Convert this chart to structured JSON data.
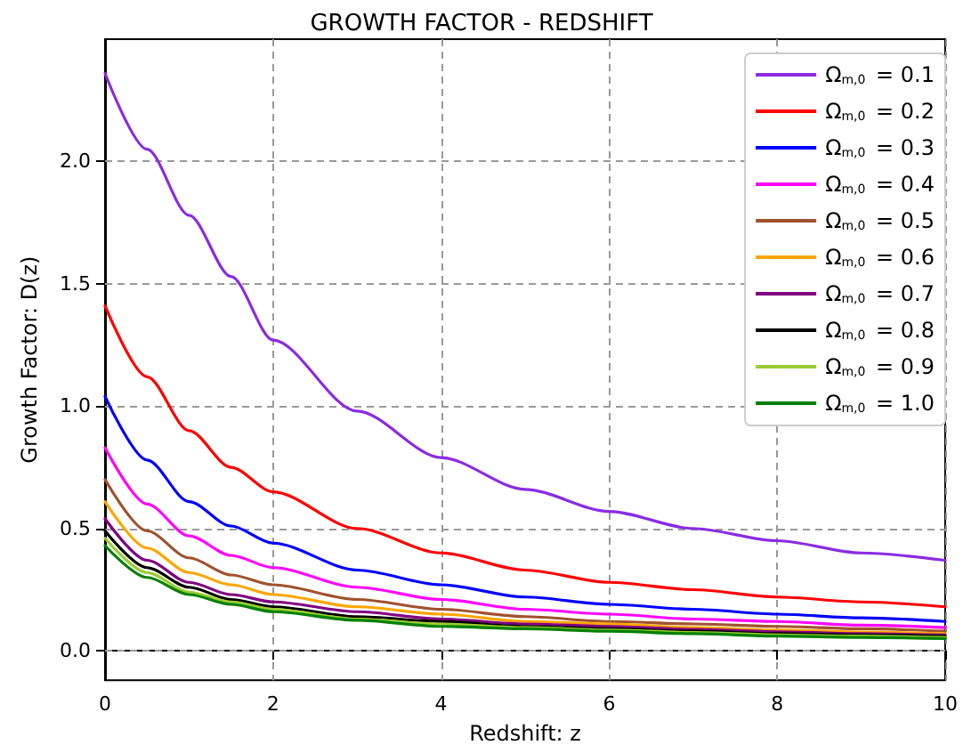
{
  "chart_data": {
    "type": "line",
    "title": "GROWTH FACTOR - REDSHIFT",
    "xlabel": "Redshift: z",
    "ylabel": "Growth Factor: D(z)",
    "x": [
      0,
      0.5,
      1,
      1.5,
      2,
      3,
      4,
      5,
      6,
      7,
      8,
      9,
      10
    ],
    "series": [
      {
        "name": "Ω$_{m,0}$ = 0.1",
        "color": "#8a2be2",
        "values": [
          2.36,
          2.05,
          1.78,
          1.53,
          1.27,
          0.98,
          0.79,
          0.66,
          0.57,
          0.5,
          0.45,
          0.4,
          0.37
        ]
      },
      {
        "name": "Ω$_{m,0}$ = 0.2",
        "color": "#ff0000",
        "values": [
          1.41,
          1.12,
          0.9,
          0.75,
          0.65,
          0.5,
          0.4,
          0.33,
          0.28,
          0.25,
          0.22,
          0.2,
          0.18
        ]
      },
      {
        "name": "Ω$_{m,0}$ = 0.3",
        "color": "#0000ff",
        "values": [
          1.04,
          0.78,
          0.61,
          0.51,
          0.44,
          0.33,
          0.27,
          0.22,
          0.19,
          0.17,
          0.15,
          0.135,
          0.12
        ]
      },
      {
        "name": "Ω$_{m,0}$ = 0.4",
        "color": "#ff00ff",
        "values": [
          0.83,
          0.6,
          0.47,
          0.39,
          0.34,
          0.26,
          0.21,
          0.17,
          0.15,
          0.13,
          0.12,
          0.105,
          0.095
        ]
      },
      {
        "name": "Ω$_{m,0}$ = 0.5",
        "color": "#a0522d",
        "values": [
          0.7,
          0.49,
          0.38,
          0.31,
          0.27,
          0.21,
          0.17,
          0.14,
          0.12,
          0.11,
          0.1,
          0.09,
          0.08
        ]
      },
      {
        "name": "Ω$_{m,0}$ = 0.6",
        "color": "#ffa500",
        "values": [
          0.61,
          0.42,
          0.32,
          0.27,
          0.23,
          0.18,
          0.15,
          0.12,
          0.11,
          0.095,
          0.085,
          0.077,
          0.07
        ]
      },
      {
        "name": "Ω$_{m,0}$ = 0.7",
        "color": "#800080",
        "values": [
          0.54,
          0.37,
          0.28,
          0.23,
          0.2,
          0.16,
          0.13,
          0.11,
          0.1,
          0.088,
          0.078,
          0.07,
          0.065
        ]
      },
      {
        "name": "Ω$_{m,0}$ = 0.8",
        "color": "#000000",
        "values": [
          0.49,
          0.34,
          0.26,
          0.21,
          0.18,
          0.14,
          0.12,
          0.1,
          0.09,
          0.08,
          0.07,
          0.065,
          0.06
        ]
      },
      {
        "name": "Ω$_{m,0}$ = 0.9",
        "color": "#9acd32",
        "values": [
          0.46,
          0.32,
          0.24,
          0.2,
          0.17,
          0.13,
          0.11,
          0.095,
          0.085,
          0.075,
          0.065,
          0.06,
          0.055
        ]
      },
      {
        "name": "Ω$_{m,0}$ = 1.0",
        "color": "#008000",
        "values": [
          0.43,
          0.3,
          0.23,
          0.19,
          0.16,
          0.125,
          0.1,
          0.09,
          0.08,
          0.07,
          0.06,
          0.055,
          0.05
        ]
      }
    ],
    "xlim": [
      0,
      10
    ],
    "xticks": [
      0,
      2,
      4,
      6,
      8,
      10
    ],
    "ylim": [
      -0.12,
      2.5
    ],
    "yticks": [
      {
        "value": 0,
        "label": "0.0"
      },
      {
        "value": 0.5,
        "label": "0.5"
      },
      {
        "value": 1,
        "label": "1.0"
      },
      {
        "value": 1.5,
        "label": "1.5"
      },
      {
        "value": 2,
        "label": "2.0"
      }
    ],
    "grid": true,
    "legend": "top right",
    "marker": "none",
    "line_style": "solid"
  }
}
